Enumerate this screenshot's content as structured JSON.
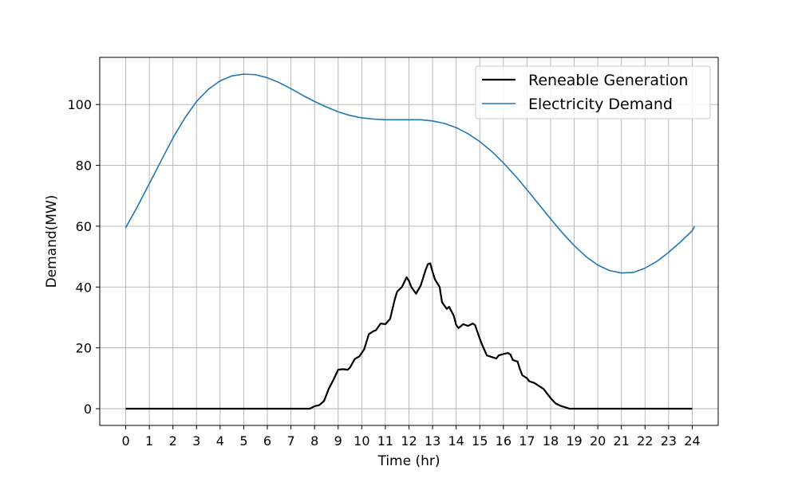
{
  "chart_data": {
    "type": "line",
    "xlabel": "Time (hr)",
    "ylabel": "Demand(MW)",
    "xlim": [
      -1.1,
      25.1
    ],
    "ylim": [
      -5.5,
      115.5
    ],
    "x_ticks": [
      0,
      1,
      2,
      3,
      4,
      5,
      6,
      7,
      8,
      9,
      10,
      11,
      12,
      13,
      14,
      15,
      16,
      17,
      18,
      19,
      20,
      21,
      22,
      23,
      24
    ],
    "y_ticks": [
      0,
      20,
      40,
      60,
      80,
      100
    ],
    "grid": true,
    "legend_position": "top-right",
    "series": [
      {
        "name": "Reneable Generation",
        "color": "#000000",
        "points": [
          [
            0,
            0
          ],
          [
            7.8,
            0
          ],
          [
            8.0,
            0.8
          ],
          [
            8.2,
            1.2
          ],
          [
            8.4,
            2.5
          ],
          [
            8.6,
            6.5
          ],
          [
            8.8,
            9.5
          ],
          [
            9.0,
            12.8
          ],
          [
            9.2,
            13.0
          ],
          [
            9.4,
            12.8
          ],
          [
            9.5,
            13.5
          ],
          [
            9.7,
            16.3
          ],
          [
            9.9,
            17.2
          ],
          [
            10.1,
            19.5
          ],
          [
            10.3,
            24.5
          ],
          [
            10.5,
            25.5
          ],
          [
            10.6,
            25.8
          ],
          [
            10.8,
            28.0
          ],
          [
            11.0,
            27.8
          ],
          [
            11.2,
            29.5
          ],
          [
            11.4,
            36.0
          ],
          [
            11.5,
            38.5
          ],
          [
            11.7,
            40.0
          ],
          [
            11.9,
            43.2
          ],
          [
            12.0,
            42.0
          ],
          [
            12.1,
            40.0
          ],
          [
            12.3,
            37.8
          ],
          [
            12.5,
            40.5
          ],
          [
            12.7,
            45.5
          ],
          [
            12.8,
            47.5
          ],
          [
            12.9,
            47.8
          ],
          [
            13.0,
            45.0
          ],
          [
            13.1,
            42.5
          ],
          [
            13.3,
            40.0
          ],
          [
            13.4,
            35.0
          ],
          [
            13.6,
            32.8
          ],
          [
            13.7,
            33.5
          ],
          [
            13.9,
            30.5
          ],
          [
            14.0,
            27.5
          ],
          [
            14.1,
            26.5
          ],
          [
            14.3,
            27.8
          ],
          [
            14.5,
            27.2
          ],
          [
            14.7,
            28.0
          ],
          [
            14.8,
            27.5
          ],
          [
            15.0,
            23.0
          ],
          [
            15.1,
            21.0
          ],
          [
            15.3,
            17.5
          ],
          [
            15.5,
            17.0
          ],
          [
            15.7,
            16.5
          ],
          [
            15.8,
            17.5
          ],
          [
            16.0,
            18.0
          ],
          [
            16.2,
            18.3
          ],
          [
            16.3,
            17.8
          ],
          [
            16.4,
            16.0
          ],
          [
            16.6,
            15.5
          ],
          [
            16.7,
            13.0
          ],
          [
            16.8,
            11.0
          ],
          [
            17.0,
            10.0
          ],
          [
            17.1,
            9.0
          ],
          [
            17.3,
            8.5
          ],
          [
            17.5,
            7.5
          ],
          [
            17.7,
            6.5
          ],
          [
            17.8,
            5.5
          ],
          [
            18.0,
            3.5
          ],
          [
            18.2,
            1.8
          ],
          [
            18.4,
            1.0
          ],
          [
            18.6,
            0.5
          ],
          [
            18.8,
            0
          ],
          [
            24,
            0
          ]
        ]
      },
      {
        "name": "Electricity Demand",
        "color": "#1f77b4",
        "points": [
          [
            0,
            59.5
          ],
          [
            0.5,
            66.5
          ],
          [
            1,
            74
          ],
          [
            1.5,
            81.5
          ],
          [
            2,
            89
          ],
          [
            2.5,
            95.5
          ],
          [
            3,
            101
          ],
          [
            3.5,
            105
          ],
          [
            4,
            107.8
          ],
          [
            4.5,
            109.4
          ],
          [
            5,
            110
          ],
          [
            5.5,
            109.8
          ],
          [
            6,
            108.8
          ],
          [
            6.5,
            107.2
          ],
          [
            7,
            105.2
          ],
          [
            7.5,
            103
          ],
          [
            8,
            101
          ],
          [
            8.5,
            99.2
          ],
          [
            9,
            97.6
          ],
          [
            9.5,
            96.4
          ],
          [
            10,
            95.6
          ],
          [
            10.5,
            95.2
          ],
          [
            11,
            95
          ],
          [
            11.5,
            95
          ],
          [
            12,
            95
          ],
          [
            12.5,
            95
          ],
          [
            13,
            94.6
          ],
          [
            13.5,
            93.8
          ],
          [
            14,
            92.4
          ],
          [
            14.5,
            90.4
          ],
          [
            15,
            87.8
          ],
          [
            15.5,
            84.6
          ],
          [
            16,
            80.8
          ],
          [
            16.5,
            76.6
          ],
          [
            17,
            72
          ],
          [
            17.5,
            67.2
          ],
          [
            18,
            62.4
          ],
          [
            18.5,
            57.8
          ],
          [
            19,
            53.6
          ],
          [
            19.5,
            50
          ],
          [
            20,
            47.2
          ],
          [
            20.5,
            45.4
          ],
          [
            21,
            44.6
          ],
          [
            21.5,
            44.8
          ],
          [
            22,
            46.2
          ],
          [
            22.5,
            48.4
          ],
          [
            23,
            51.4
          ],
          [
            23.5,
            54.8
          ],
          [
            24,
            58.5
          ],
          [
            24.1,
            60
          ]
        ]
      }
    ]
  }
}
